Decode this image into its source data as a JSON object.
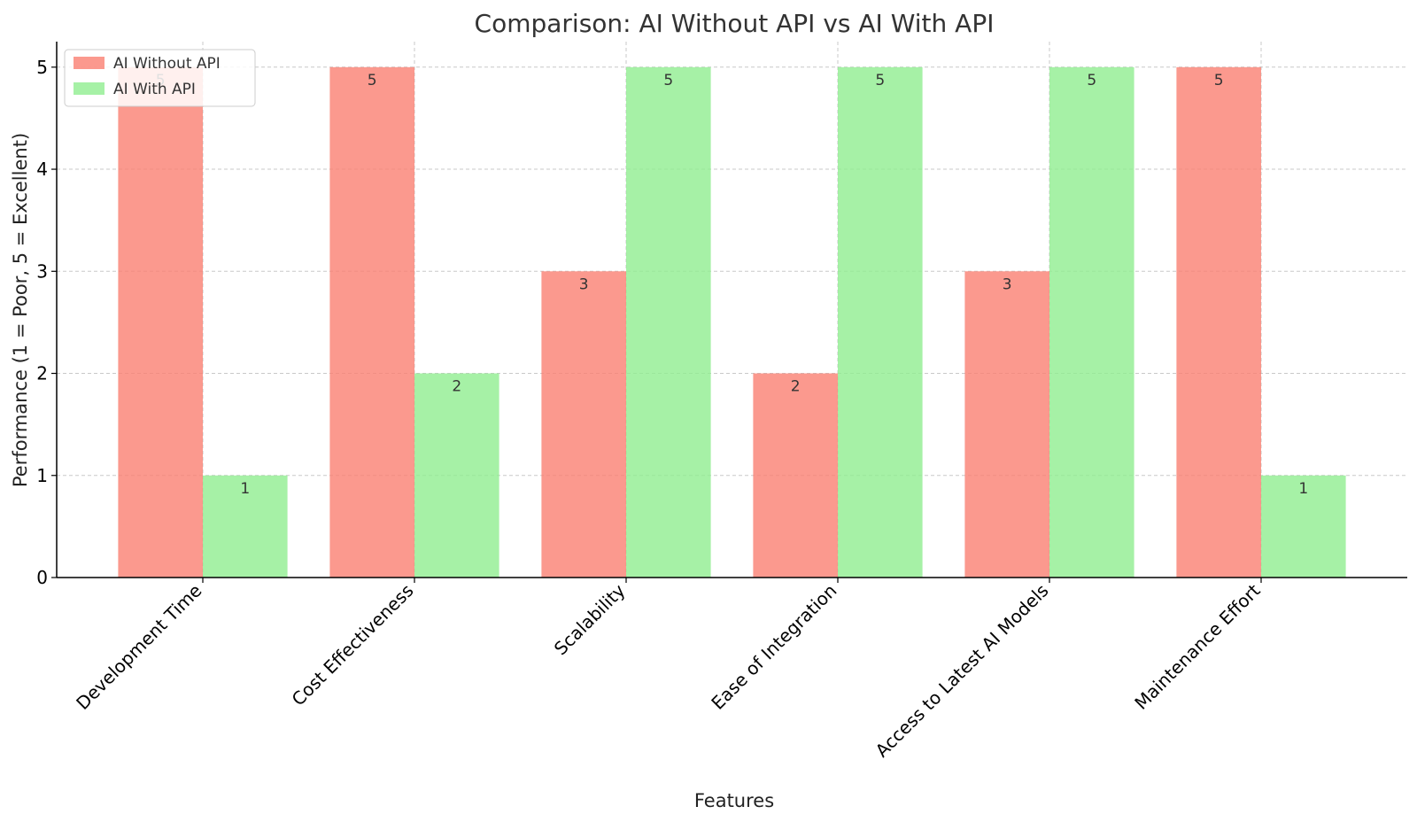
{
  "chart_data": {
    "type": "bar",
    "title": "Comparison: AI Without API vs AI With API",
    "xlabel": "Features",
    "ylabel": "Performance (1 = Poor, 5 = Excellent)",
    "categories": [
      "Development Time",
      "Cost Effectiveness",
      "Scalability",
      "Ease of Integration",
      "Access to Latest AI Models",
      "Maintenance Effort"
    ],
    "series": [
      {
        "name": "AI Without API",
        "color": "#fa8072",
        "values": [
          5,
          5,
          3,
          2,
          3,
          5
        ]
      },
      {
        "name": "AI With API",
        "color": "#90ee90",
        "values": [
          1,
          2,
          5,
          5,
          5,
          1
        ]
      }
    ],
    "ylim": [
      0,
      5.25
    ],
    "yticks": [
      0,
      1,
      2,
      3,
      4,
      5
    ],
    "grid": true,
    "legend_position": "top-left"
  }
}
